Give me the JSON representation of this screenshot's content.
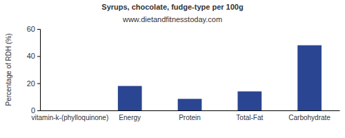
{
  "chart_data": {
    "type": "bar",
    "title": "Syrups, chocolate, fudge-type per 100g",
    "subtitle": "www.dietandfitnesstoday.com",
    "ylabel": "Percentage of RDH (%)",
    "categories": [
      "vitamin-k-(phylloquinone)",
      "Energy",
      "Protein",
      "Total-Fat",
      "Carbohydrate"
    ],
    "values": [
      0,
      18,
      8.5,
      14,
      48
    ],
    "color": "#2a4591",
    "ylim": [
      0,
      60
    ],
    "yticks": [
      0,
      20,
      40,
      60
    ],
    "grid": false
  }
}
